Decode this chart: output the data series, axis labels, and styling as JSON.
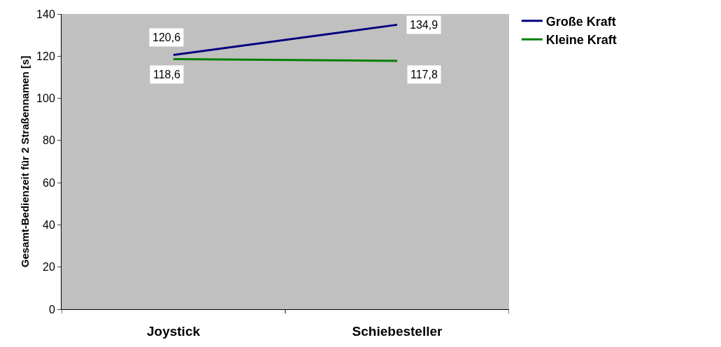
{
  "chart_data": {
    "type": "line",
    "ylabel": "Gesamt-Bedienzeit für 2 Straßennamen [s]",
    "categories": [
      "Joystick",
      "Schiebesteller"
    ],
    "series": [
      {
        "name": "Große Kraft",
        "color": "#000080",
        "values": [
          120.6,
          134.9
        ],
        "value_labels": [
          "120,6",
          "134,9"
        ]
      },
      {
        "name": "Kleine Kraft",
        "color": "#008000",
        "values": [
          118.6,
          117.8
        ],
        "value_labels": [
          "118,6",
          "117,8"
        ]
      }
    ],
    "ylim": [
      0,
      140
    ],
    "yticks": [
      0,
      20,
      40,
      60,
      80,
      100,
      120,
      140
    ],
    "grid": false,
    "legend": "top right",
    "marker": "none",
    "line_style": "solid"
  }
}
